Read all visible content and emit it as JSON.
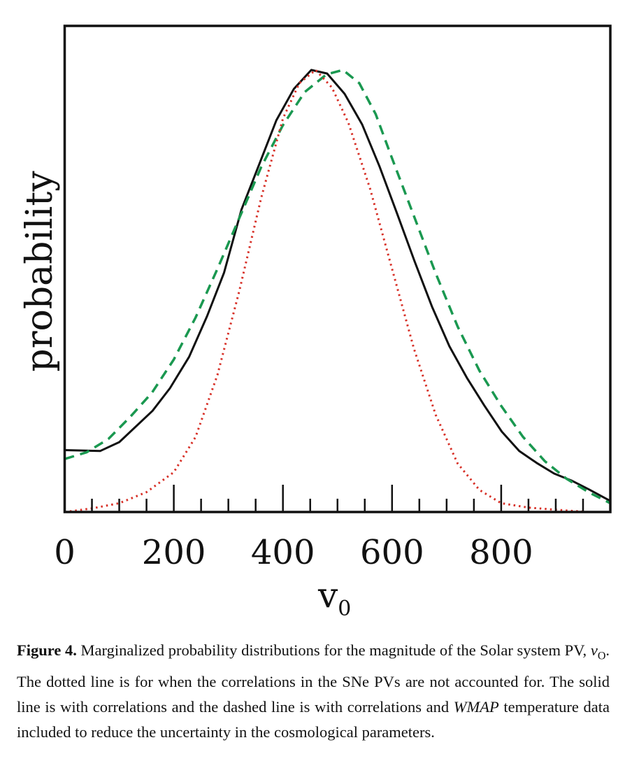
{
  "chart_data": {
    "type": "line",
    "title": "",
    "xlabel": "v",
    "xlabel_subscript": "0",
    "ylabel": "probability",
    "xlim": [
      0,
      1000
    ],
    "ylim": [
      0,
      1.0
    ],
    "x_ticks_major": [
      0,
      200,
      400,
      600,
      800
    ],
    "x_tick_labels": [
      "0",
      "200",
      "400",
      "600",
      "800"
    ],
    "x_ticks_minor_step": 50,
    "grid": false,
    "legend": "none",
    "series": [
      {
        "name": "solid",
        "style": "solid",
        "color": "#111111",
        "x": [
          0,
          65,
          100,
          161,
          193,
          228,
          261,
          292,
          324,
          356,
          388,
          420,
          452,
          481,
          513,
          545,
          577,
          609,
          641,
          673,
          705,
          737,
          769,
          801,
          833,
          865,
          897,
          929,
          961,
          1000
        ],
        "y": [
          0.14,
          0.138,
          0.158,
          0.229,
          0.28,
          0.351,
          0.443,
          0.541,
          0.684,
          0.785,
          0.886,
          0.957,
          1.0,
          0.992,
          0.946,
          0.877,
          0.782,
          0.676,
          0.568,
          0.465,
          0.375,
          0.304,
          0.241,
          0.182,
          0.138,
          0.111,
          0.087,
          0.071,
          0.051,
          0.025
        ]
      },
      {
        "name": "dashed",
        "style": "dashed",
        "color": "#1a9850",
        "x": [
          0,
          40,
          80,
          120,
          160,
          200,
          240,
          280,
          320,
          360,
          400,
          440,
          480,
          510,
          540,
          570,
          600,
          640,
          680,
          720,
          760,
          800,
          840,
          880,
          920,
          960,
          1000
        ],
        "y": [
          0.12,
          0.135,
          0.165,
          0.215,
          0.27,
          0.345,
          0.44,
          0.55,
          0.665,
          0.78,
          0.875,
          0.95,
          0.99,
          1.0,
          0.97,
          0.9,
          0.8,
          0.67,
          0.54,
          0.42,
          0.32,
          0.24,
          0.17,
          0.115,
          0.075,
          0.045,
          0.02
        ]
      },
      {
        "name": "dotted",
        "style": "dotted",
        "color": "#d73027",
        "x": [
          0,
          50,
          100,
          150,
          200,
          240,
          280,
          320,
          360,
          400,
          430,
          460,
          490,
          520,
          560,
          600,
          640,
          680,
          720,
          760,
          800,
          850,
          900,
          960
        ],
        "y": [
          0.0,
          0.008,
          0.02,
          0.045,
          0.09,
          0.17,
          0.31,
          0.5,
          0.71,
          0.89,
          0.97,
          1.0,
          0.96,
          0.88,
          0.73,
          0.55,
          0.37,
          0.22,
          0.11,
          0.05,
          0.02,
          0.01,
          0.005,
          0.0
        ]
      }
    ]
  },
  "caption": {
    "label": "Figure 4.",
    "text_before_math": " Marginalized probability distributions for the magnitude of the Solar system PV, ",
    "math": "v",
    "math_sub": "O",
    "text_after_math": ". The dotted line is for when the correlations in the SNe PVs are not accounted for. The solid line is with correlations and the dashed line is with correlations and ",
    "italic": "WMAP",
    "text_end": " temperature data included to reduce the uncertainty in the cosmological parameters."
  }
}
